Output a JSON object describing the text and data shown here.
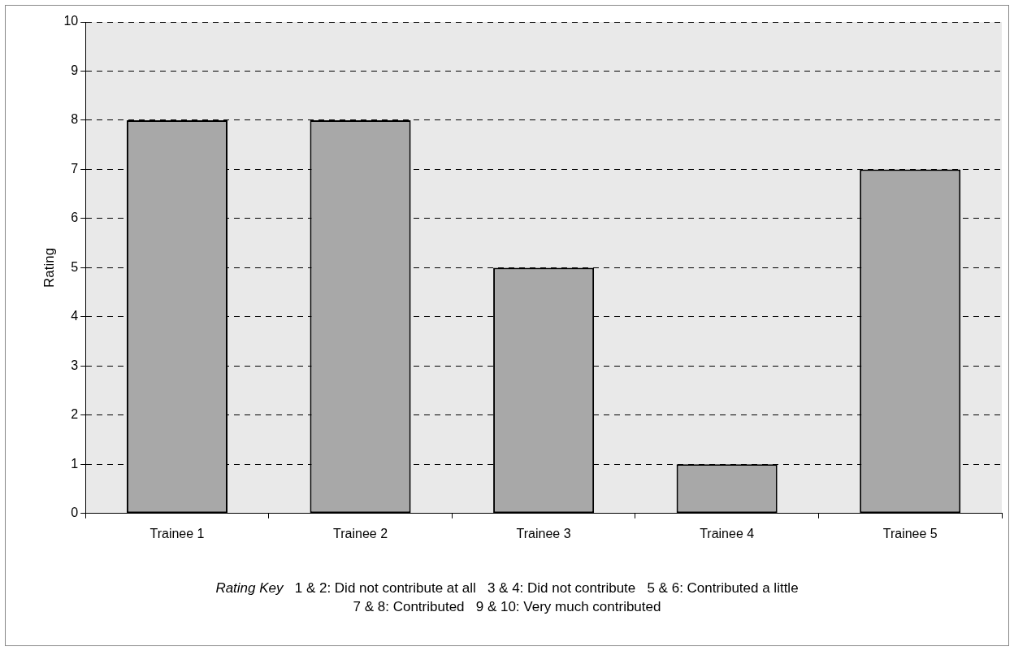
{
  "chart_data": {
    "type": "bar",
    "ylabel": "Rating",
    "categories": [
      "Trainee 1",
      "Trainee 2",
      "Trainee 3",
      "Trainee 4",
      "Trainee 5"
    ],
    "values": [
      8,
      8,
      5,
      1,
      7
    ],
    "color": "#a8a8a8",
    "ylim": [
      0,
      10
    ],
    "yticks": [
      0,
      1,
      2,
      3,
      4,
      5,
      6,
      7,
      8,
      9,
      10
    ],
    "grid": "y",
    "legend": false,
    "annotations": [
      "Rating Key",
      "1 & 2: Did not contribute at all   3 & 4: Did not contribute   5 & 6: Contributed a little",
      "7 & 8: Contributed   9 & 10: Very much contributed"
    ]
  }
}
